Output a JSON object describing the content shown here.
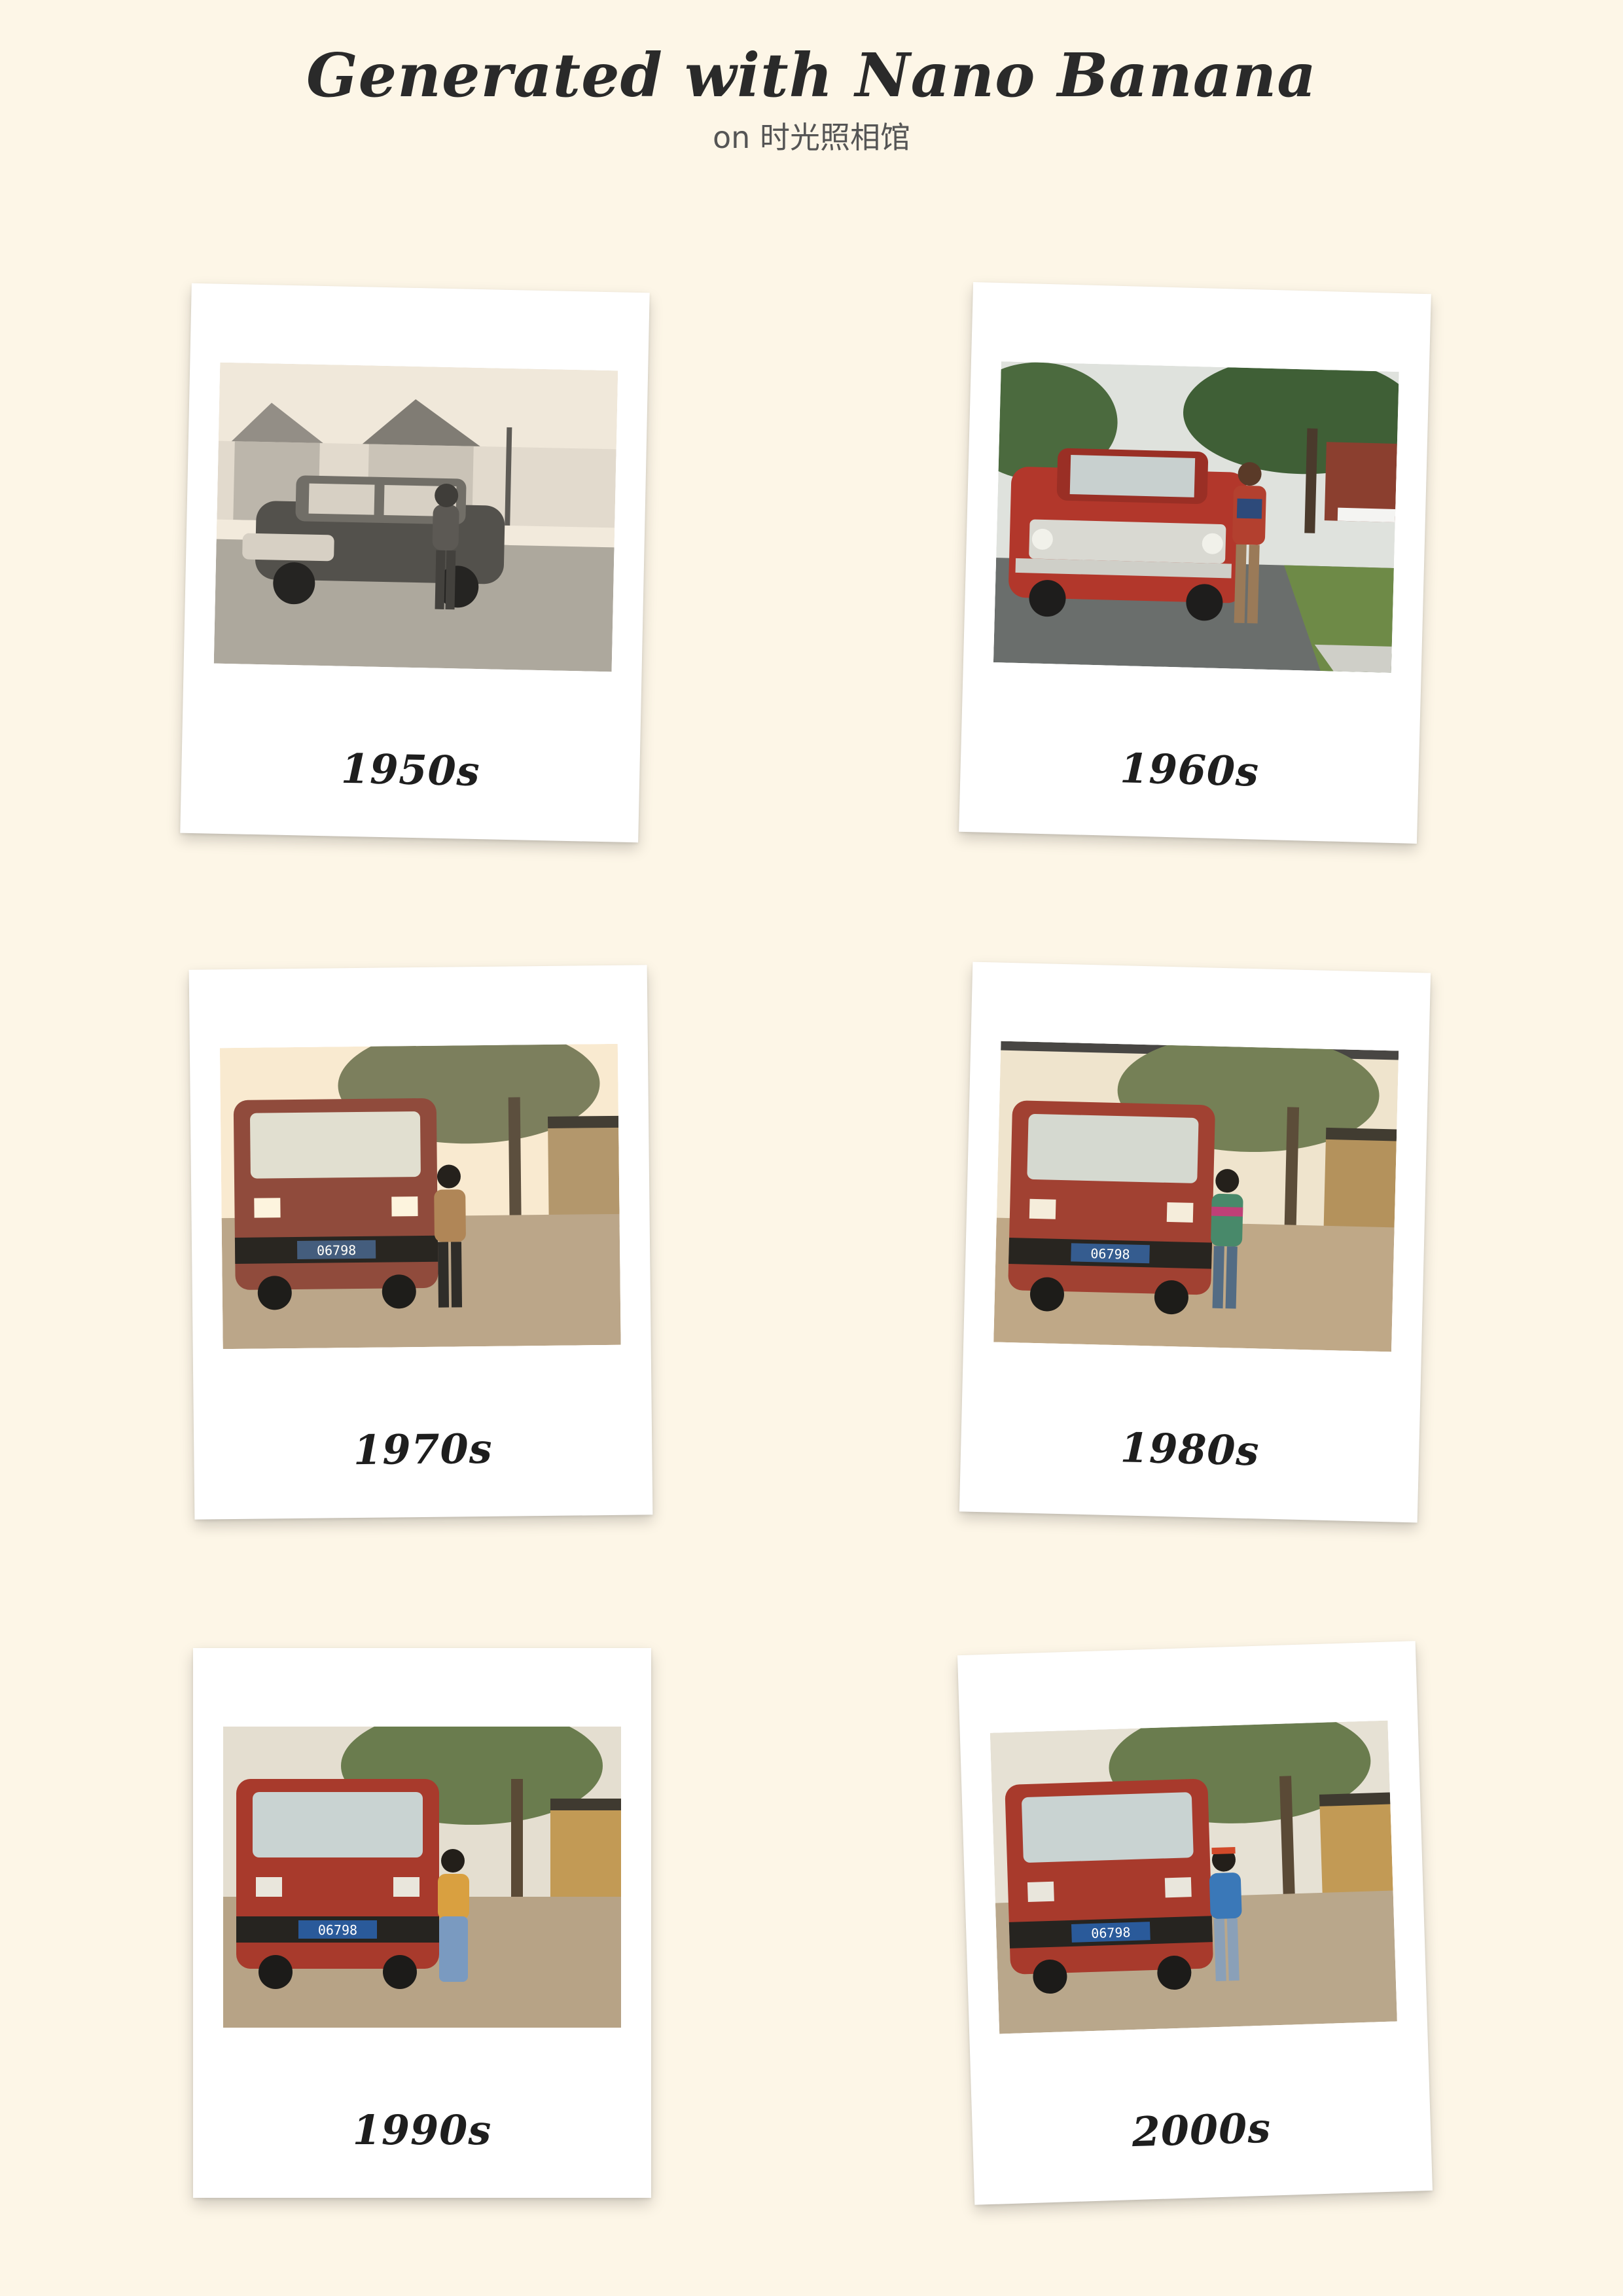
{
  "header": {
    "title": "Generated with Nano Banana",
    "subtitle": "on 时光照相馆"
  },
  "cards": [
    {
      "label": "1950s",
      "plate": ""
    },
    {
      "label": "1960s",
      "plate": ""
    },
    {
      "label": "1970s",
      "plate": "06798"
    },
    {
      "label": "1980s",
      "plate": "06798"
    },
    {
      "label": "1990s",
      "plate": "06798"
    },
    {
      "label": "2000s",
      "plate": "06798"
    }
  ],
  "colors": {
    "background": "#fdf6e7",
    "frame": "#ffffff",
    "van_red": "#a83a2c",
    "car_red": "#b2372b"
  }
}
